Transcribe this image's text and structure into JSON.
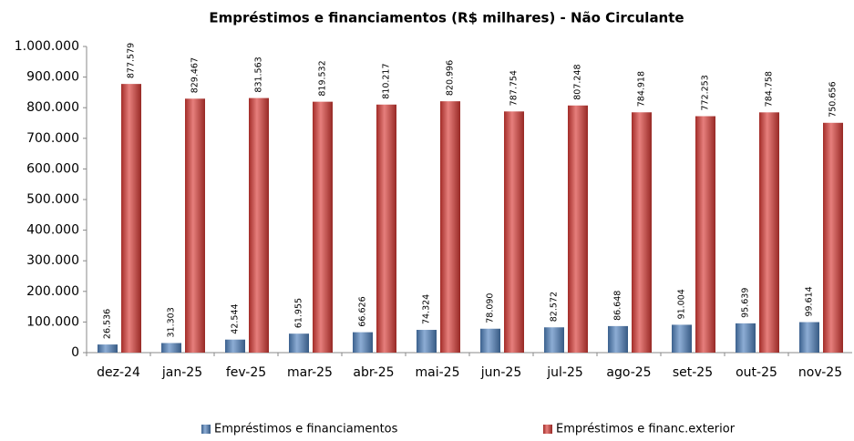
{
  "chart_data": {
    "type": "bar",
    "title": "Empréstimos e financiamentos (R$ milhares) - Não Circulante",
    "categories": [
      "dez-24",
      "jan-25",
      "fev-25",
      "mar-25",
      "abr-25",
      "mai-25",
      "jun-25",
      "jul-25",
      "ago-25",
      "set-25",
      "out-25",
      "nov-25"
    ],
    "series": [
      {
        "name": "Empréstimos e financiamentos",
        "color": "#4f81bd",
        "values": [
          26536,
          31303,
          42544,
          61955,
          66626,
          74324,
          78090,
          82572,
          86648,
          91004,
          95639,
          99614
        ],
        "value_labels": [
          "26.536",
          "31.303",
          "42.544",
          "61.955",
          "66.626",
          "74.324",
          "78.090",
          "82.572",
          "86.648",
          "91.004",
          "95.639",
          "99.614"
        ]
      },
      {
        "name": "Empréstimos e financ.exterior",
        "color": "#d83a35",
        "values": [
          877579,
          829467,
          831563,
          819532,
          810217,
          820996,
          787754,
          807248,
          784918,
          772253,
          784758,
          750656
        ],
        "value_labels": [
          "877.579",
          "829.467",
          "831.563",
          "819.532",
          "810.217",
          "820.996",
          "787.754",
          "807.248",
          "784.918",
          "772.253",
          "784.758",
          "750.656"
        ]
      }
    ],
    "ylim": [
      0,
      1000000
    ],
    "yticks": [
      0,
      {
        "value": 100000,
        "label": "100.000"
      },
      {
        "value": 200000,
        "label": "200.000"
      },
      {
        "value": 300000,
        "label": "300.000"
      },
      {
        "value": 400000,
        "label": "400.000"
      },
      {
        "value": 500000,
        "label": "500.000"
      },
      {
        "value": 600000,
        "label": "600.000"
      },
      {
        "value": 700000,
        "label": "700.000"
      },
      {
        "value": 800000,
        "label": "800.000"
      },
      {
        "value": 900000,
        "label": "900.000"
      },
      {
        "value": 1000000,
        "label": "1.000.000"
      }
    ],
    "grid": false,
    "legend": "bottom"
  }
}
